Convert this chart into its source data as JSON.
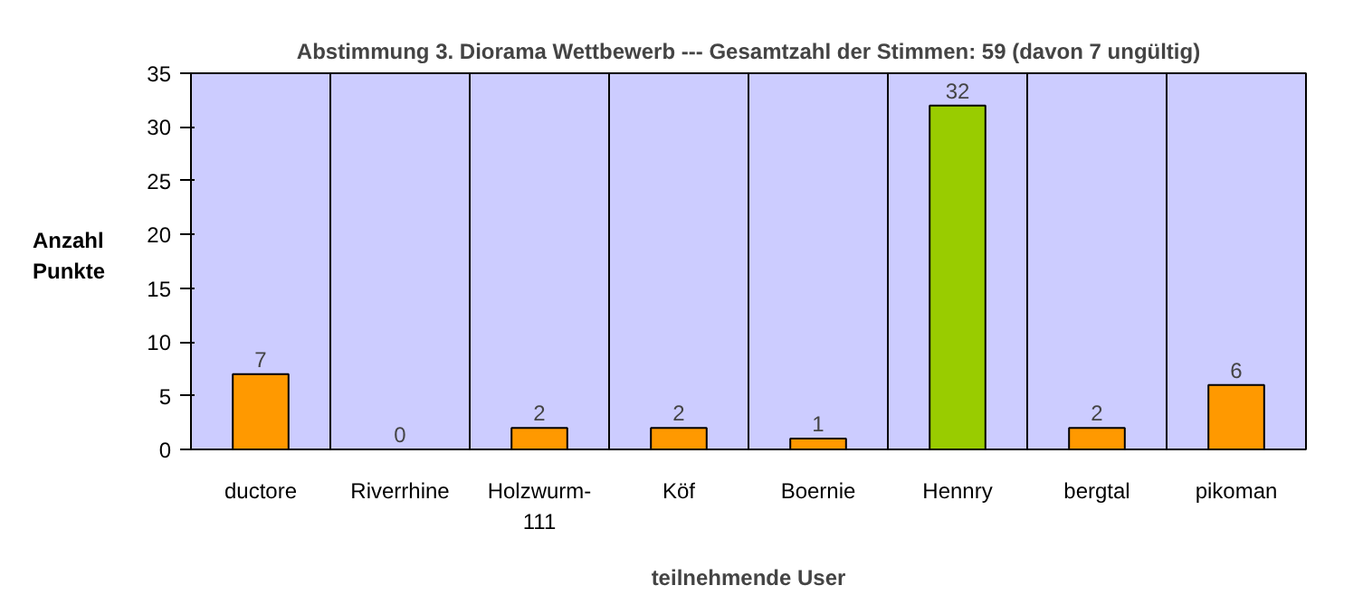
{
  "chart_data": {
    "type": "bar",
    "title": "Abstimmung 3. Diorama Wettbewerb --- Gesamtzahl der Stimmen: 59 (davon 7 ungültig)",
    "xlabel": "teilnehmende User",
    "ylabel": "Anzahl Punkte",
    "categories": [
      "ductore",
      "Riverrhine",
      "Holzwurm-111",
      "Köf",
      "Boernie",
      "Hennry",
      "bergtal",
      "pikoman"
    ],
    "values": [
      7,
      0,
      2,
      2,
      1,
      32,
      2,
      6
    ],
    "colors": [
      "#ff9900",
      "#ff9900",
      "#ff9900",
      "#ff9900",
      "#ff9900",
      "#99cc00",
      "#ff9900",
      "#ff9900"
    ],
    "ylim": [
      0,
      35
    ],
    "yticks": [
      0,
      5,
      10,
      15,
      20,
      25,
      30,
      35
    ],
    "grid": "x",
    "data_labels": true
  }
}
